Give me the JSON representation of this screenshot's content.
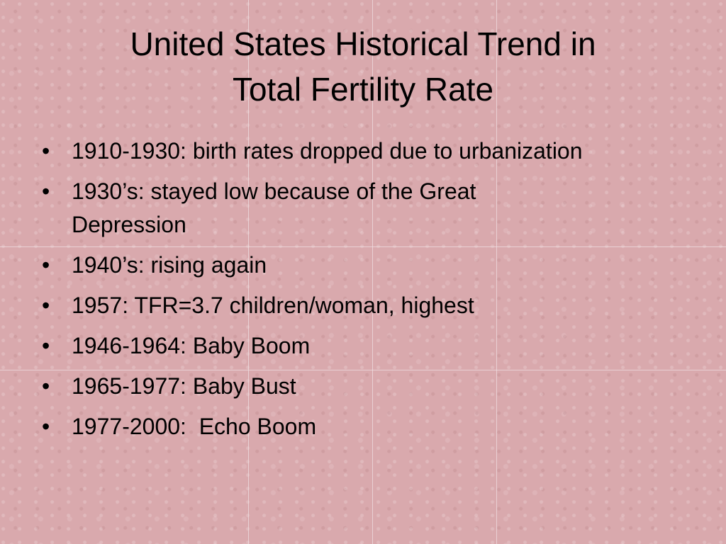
{
  "slide": {
    "title_lines": [
      "United States Historical Trend in",
      "Total Fertility Rate"
    ],
    "bullets": [
      "1910-1930: birth rates dropped due to urbanization",
      "1930’s: stayed low because of the Great Depression",
      "1940’s: rising again",
      "1957: TFR=3.7 children/woman, highest",
      "1946-1964: Baby Boom",
      "1965-1977: Baby Bust",
      "1977-2000:  Echo Boom"
    ]
  }
}
